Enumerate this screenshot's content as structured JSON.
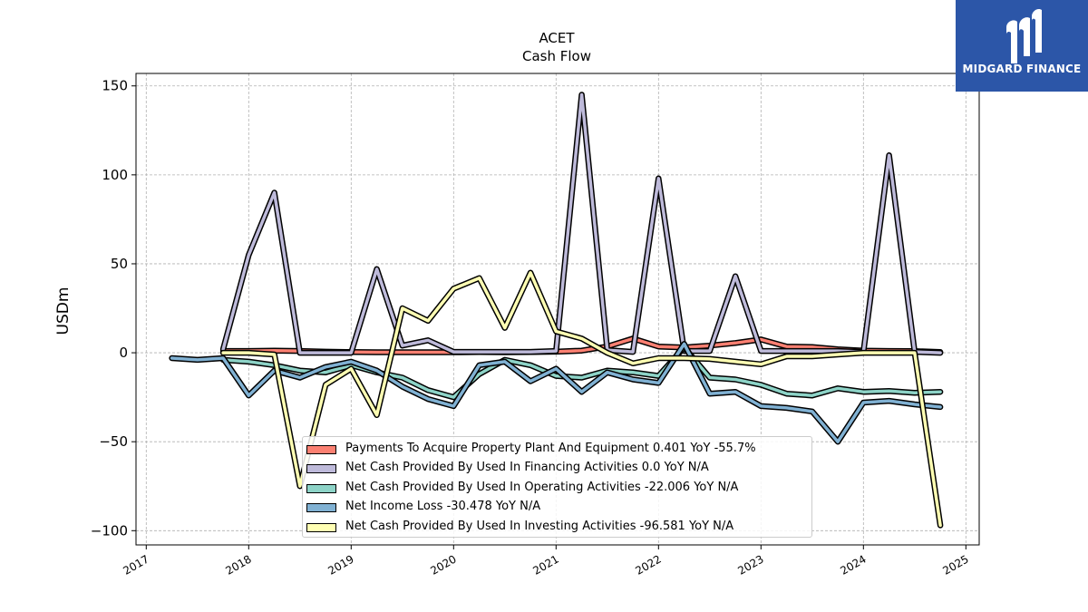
{
  "logo": {
    "text": "MIDGARD FINANCE",
    "background": "#2c56a8"
  },
  "chart_data": {
    "type": "line",
    "title": "ACET",
    "subtitle": "Cash Flow",
    "ylabel": "USDm",
    "xlabel": "",
    "ylim": [
      -108,
      157
    ],
    "xlim": [
      2016.9,
      2025.13
    ],
    "yticks": [
      150,
      100,
      50,
      0,
      -50,
      -100
    ],
    "xticks": [
      2017,
      2018,
      2019,
      2020,
      2021,
      2022,
      2023,
      2024,
      2025
    ],
    "grid": true,
    "legend_position": "lower-center",
    "series": [
      {
        "name": "Payments To Acquire Property Plant And Equipment  0.401 YoY -55.7%",
        "color": "#fb8072",
        "x": [
          2017.75,
          2018.0,
          2018.25,
          2018.5,
          2018.75,
          2019.0,
          2019.25,
          2019.5,
          2019.75,
          2020.0,
          2020.25,
          2020.5,
          2020.75,
          2021.0,
          2021.25,
          2021.5,
          2021.75,
          2022.0,
          2022.25,
          2022.5,
          2022.75,
          2023.0,
          2023.25,
          2023.5,
          2023.75,
          2024.0,
          2024.25,
          2024.5,
          2024.75
        ],
        "values": [
          1.0,
          1.0,
          1.2,
          1.0,
          0.6,
          0.4,
          0.3,
          0.3,
          0.3,
          0.3,
          0.4,
          0.3,
          0.4,
          0.6,
          1.2,
          3.5,
          8.0,
          3.5,
          3.0,
          4.0,
          5.5,
          7.5,
          3.5,
          3.2,
          2.0,
          1.2,
          1.0,
          0.9,
          0.4
        ]
      },
      {
        "name": "Net Cash Provided By Used In Financing Activities  0.0 YoY N/A",
        "color": "#bebada",
        "x": [
          2017.75,
          2018.0,
          2018.25,
          2018.5,
          2018.75,
          2019.0,
          2019.25,
          2019.5,
          2019.75,
          2020.0,
          2020.25,
          2020.5,
          2020.75,
          2021.0,
          2021.25,
          2021.5,
          2021.75,
          2022.0,
          2022.25,
          2022.5,
          2022.75,
          2023.0,
          2023.25,
          2023.5,
          2023.75,
          2024.0,
          2024.25,
          2024.5,
          2024.75
        ],
        "values": [
          2.0,
          55.0,
          90.0,
          0.0,
          0.0,
          0.0,
          47.0,
          4.0,
          7.0,
          0.5,
          0.5,
          0.5,
          0.5,
          1.0,
          145.0,
          1.5,
          0.5,
          98.0,
          1.0,
          1.0,
          43.0,
          1.0,
          1.0,
          1.0,
          1.0,
          0.5,
          111.0,
          0.5,
          0.0
        ]
      },
      {
        "name": "Net Cash Provided By Used In Operating Activities  -22.006 YoY N/A",
        "color": "#8dd3c7",
        "x": [
          2017.75,
          2018.0,
          2018.25,
          2018.5,
          2018.75,
          2019.0,
          2019.25,
          2019.5,
          2019.75,
          2020.0,
          2020.25,
          2020.5,
          2020.75,
          2021.0,
          2021.25,
          2021.5,
          2021.75,
          2022.0,
          2022.25,
          2022.5,
          2022.75,
          2023.0,
          2023.25,
          2023.5,
          2023.75,
          2024.0,
          2024.25,
          2024.5,
          2024.75
        ],
        "values": [
          -4.0,
          -5.0,
          -7.0,
          -10.0,
          -11.0,
          -7.0,
          -11.0,
          -14.0,
          -21.0,
          -25.0,
          -12.0,
          -4.0,
          -7.0,
          -13.0,
          -14.0,
          -10.0,
          -11.0,
          -13.0,
          3.0,
          -14.0,
          -15.0,
          -18.0,
          -23.0,
          -24.0,
          -20.0,
          -22.0,
          -21.5,
          -22.5,
          -22.0
        ]
      },
      {
        "name": "Net Income Loss  -30.478 YoY N/A",
        "color": "#80b1d3",
        "x": [
          2017.25,
          2017.5,
          2017.75,
          2018.0,
          2018.25,
          2018.5,
          2018.75,
          2019.0,
          2019.25,
          2019.5,
          2019.75,
          2020.0,
          2020.25,
          2020.5,
          2020.75,
          2021.0,
          2021.25,
          2021.5,
          2021.75,
          2022.0,
          2022.25,
          2022.5,
          2022.75,
          2023.0,
          2023.25,
          2023.5,
          2023.75,
          2024.0,
          2024.25,
          2024.5,
          2024.75
        ],
        "values": [
          -3.0,
          -4.0,
          -3.0,
          -24.0,
          -10.0,
          -14.0,
          -8.0,
          -5.0,
          -10.0,
          -19.0,
          -26.0,
          -30.0,
          -7.0,
          -5.0,
          -16.0,
          -9.0,
          -22.0,
          -11.0,
          -15.0,
          -17.0,
          5.0,
          -23.0,
          -22.0,
          -30.0,
          -31.0,
          -33.0,
          -50.0,
          -28.0,
          -27.0,
          -29.0,
          -30.5
        ]
      },
      {
        "name": "Net Cash Provided By Used In Investing Activities  -96.581 YoY N/A",
        "color": "#ffffb3",
        "x": [
          2017.75,
          2018.0,
          2018.25,
          2018.5,
          2018.75,
          2019.0,
          2019.25,
          2019.5,
          2019.75,
          2020.0,
          2020.25,
          2020.5,
          2020.75,
          2021.0,
          2021.25,
          2021.5,
          2021.75,
          2022.0,
          2022.25,
          2022.5,
          2022.75,
          2023.0,
          2023.25,
          2023.5,
          2023.75,
          2024.0,
          2024.25,
          2024.5,
          2024.75
        ],
        "values": [
          0.0,
          0.0,
          -1.0,
          -75.0,
          -18.0,
          -9.0,
          -35.0,
          25.0,
          18.0,
          36.0,
          42.0,
          14.0,
          45.0,
          12.0,
          8.0,
          0.0,
          -6.0,
          -3.0,
          -3.0,
          -3.5,
          -5.0,
          -6.5,
          -2.0,
          -2.0,
          -1.0,
          0.0,
          0.0,
          0.0,
          -97.0
        ]
      }
    ]
  }
}
